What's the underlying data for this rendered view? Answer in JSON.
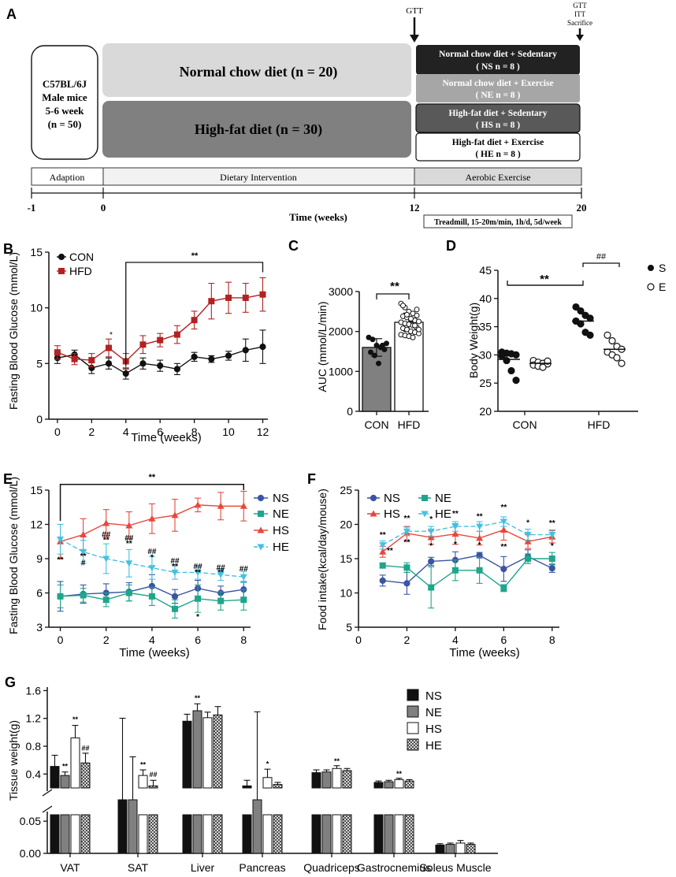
{
  "panel_labels": {
    "a": "A",
    "b": "B",
    "c": "C",
    "d": "D",
    "e": "E",
    "f": "F",
    "g": "G"
  },
  "panel_a": {
    "mice_box": [
      "C57BL/6J",
      "Male mice",
      "5-6 week",
      "(n = 50)"
    ],
    "normal_chow": "Normal chow diet (n = 20)",
    "high_fat": "High-fat diet (n = 30)",
    "groups": [
      {
        "title": "Normal chow diet + Sedentary",
        "n": "( NS n = 8 )"
      },
      {
        "title": "Normal chow diet + Exercise",
        "n": "( NE n = 8 )"
      },
      {
        "title": "High-fat diet + Sedentary",
        "n": "( HS n = 8 )"
      },
      {
        "title": "High-fat diet + Exercise",
        "n": "( HE n = 8 )"
      }
    ],
    "gtt_mid": "GTT",
    "gtt_end": [
      "GTT",
      "ITT",
      "Sacrifice"
    ],
    "phases": [
      "Adaption",
      "Dietary Intervention",
      "Aerobic Exercise"
    ],
    "ticks": [
      "-1",
      "0",
      "12",
      "20"
    ],
    "time_label": "Time (weeks)",
    "treadmill": "Treadmill, 15-20m/min, 1h/d, 5d/week",
    "colors": {
      "ns": "#222222",
      "ne": "#a6a6a6",
      "hs": "#595959",
      "he": "#ffffff",
      "nc": "#d9d9d9",
      "hf": "#7f7f7f"
    }
  },
  "chart_data": [
    {
      "id": "B",
      "type": "line",
      "xlabel": "Time (weeks)",
      "ylabel": "Fasting Blood Glucose (mmol/L)",
      "xlim": [
        -0.5,
        12.3
      ],
      "ylim": [
        0,
        15
      ],
      "xticks": [
        0,
        2,
        4,
        6,
        8,
        10,
        12
      ],
      "yticks": [
        0,
        5,
        10,
        15
      ],
      "x": [
        0,
        1,
        2,
        3,
        4,
        5,
        6,
        7,
        8,
        9,
        10,
        11,
        12
      ],
      "series": [
        {
          "name": "CON",
          "color": "#111111",
          "marker": "circle",
          "values": [
            5.5,
            5.8,
            4.6,
            5.0,
            4.1,
            5.0,
            4.8,
            4.5,
            5.6,
            5.4,
            5.7,
            6.2,
            6.5
          ],
          "err": [
            0.5,
            0.4,
            0.5,
            0.5,
            0.5,
            0.5,
            0.5,
            0.5,
            0.4,
            0.3,
            0.4,
            1.0,
            1.5
          ]
        },
        {
          "name": "HFD",
          "color": "#b22222",
          "marker": "square",
          "values": [
            6.0,
            5.4,
            5.3,
            6.4,
            5.2,
            6.7,
            7.1,
            7.6,
            8.9,
            10.6,
            10.9,
            10.9,
            11.2
          ],
          "err": [
            0.6,
            0.5,
            0.6,
            0.8,
            0.7,
            0.8,
            0.6,
            0.8,
            0.8,
            1.6,
            1.4,
            1.3,
            1.5
          ]
        }
      ],
      "annotations": [
        {
          "text": "**"
        },
        {
          "text": "*"
        }
      ]
    },
    {
      "id": "C",
      "type": "bar",
      "ylabel": "AUC (mmol/L/min)",
      "ylim": [
        0,
        3000
      ],
      "yticks": [
        0,
        1000,
        2000,
        3000
      ],
      "categories": [
        "CON",
        "HFD"
      ],
      "values": [
        1600,
        2230
      ],
      "err": [
        220,
        230
      ],
      "points": [
        [
          1850,
          1800,
          1650,
          1600,
          1550,
          1480,
          1400,
          1200,
          1650,
          1700
        ],
        [
          2700,
          2600,
          2500,
          2450,
          2400,
          2380,
          2350,
          2300,
          2280,
          2250,
          2230,
          2200,
          2180,
          2150,
          2100,
          2080,
          2050,
          2000,
          1980,
          1950,
          1920,
          1900,
          1880,
          1850,
          2550,
          2650,
          2420,
          2320,
          2150,
          2050
        ]
      ],
      "annotation": "**"
    },
    {
      "id": "D",
      "type": "scatter",
      "ylabel": "Body Weight(g)",
      "ylim": [
        20,
        45
      ],
      "yticks": [
        20,
        25,
        30,
        35,
        40,
        45
      ],
      "categories": [
        "CON",
        "HFD"
      ],
      "legend": [
        {
          "name": "S",
          "fill": "filled"
        },
        {
          "name": "E",
          "fill": "open"
        }
      ],
      "groups": [
        {
          "cat": "CON",
          "series": "S",
          "mean": 29.2,
          "values": [
            30.5,
            30.3,
            30.2,
            30.0,
            29.8,
            29.0,
            27.2,
            25.5
          ]
        },
        {
          "cat": "CON",
          "series": "E",
          "mean": 28.5,
          "values": [
            29.0,
            28.7,
            28.5,
            28.4,
            28.2,
            28.0,
            27.8,
            28.9
          ]
        },
        {
          "cat": "HFD",
          "series": "S",
          "mean": 36.0,
          "values": [
            38.5,
            37.8,
            37.0,
            36.5,
            36.0,
            35.5,
            34.0,
            33.5
          ]
        },
        {
          "cat": "HFD",
          "series": "E",
          "mean": 31.0,
          "values": [
            33.5,
            32.5,
            31.5,
            31.0,
            30.5,
            30.0,
            29.5,
            28.5
          ]
        }
      ],
      "annotations": [
        {
          "text": "**"
        },
        {
          "text": "##"
        }
      ]
    },
    {
      "id": "E",
      "type": "line",
      "xlabel": "Time (weeks)",
      "ylabel": "Fasting Blood Glucose (mmol/L)",
      "xlim": [
        -0.5,
        8.3
      ],
      "ylim": [
        3,
        15
      ],
      "xticks": [
        0,
        2,
        4,
        6,
        8
      ],
      "yticks": [
        3,
        6,
        9,
        12,
        15
      ],
      "x": [
        0,
        1,
        2,
        3,
        4,
        5,
        6,
        7,
        8
      ],
      "series": [
        {
          "name": "NS",
          "color": "#3a55a4",
          "marker": "circle",
          "values": [
            5.7,
            5.9,
            6.0,
            6.1,
            6.6,
            5.7,
            6.4,
            6.0,
            6.3
          ],
          "err": [
            1.3,
            0.8,
            0.8,
            0.8,
            1.0,
            0.6,
            0.7,
            0.6,
            0.7
          ]
        },
        {
          "name": "NE",
          "color": "#1fa58a",
          "marker": "square",
          "values": [
            5.7,
            5.8,
            5.4,
            6.0,
            5.7,
            4.6,
            5.5,
            5.3,
            5.4
          ],
          "err": [
            1.0,
            0.6,
            0.6,
            0.7,
            0.8,
            0.8,
            1.2,
            0.8,
            0.9
          ]
        },
        {
          "name": "HS",
          "color": "#e8473b",
          "marker": "triangle",
          "values": [
            10.5,
            11.1,
            12.1,
            11.9,
            12.5,
            12.8,
            13.7,
            13.6,
            13.6
          ],
          "err": [
            1.5,
            1.4,
            1.2,
            1.2,
            1.3,
            1.4,
            0.6,
            1.2,
            1.3
          ]
        },
        {
          "name": "HE",
          "color": "#45c1e0",
          "marker": "tri-down",
          "dashed": true,
          "values": [
            10.7,
            9.6,
            9.0,
            8.6,
            8.2,
            7.8,
            7.8,
            7.6,
            7.4
          ],
          "err": [
            1.3,
            1.0,
            1.3,
            1.2,
            1.0,
            0.6,
            0.6,
            0.5,
            0.5
          ]
        }
      ],
      "annotations": [
        "**",
        "**",
        "##",
        "**",
        "##",
        "**",
        "*",
        "##",
        "**",
        "##",
        "**",
        "*",
        "##",
        "**",
        "##",
        "**",
        "##",
        "**",
        "#",
        "**",
        "**"
      ]
    },
    {
      "id": "F",
      "type": "line",
      "xlabel": "Time (weeks)",
      "ylabel": "Food intake(kcal/day/mouse)",
      "xlim": [
        0,
        8.3
      ],
      "ylim": [
        5,
        25
      ],
      "xticks": [
        0,
        2,
        4,
        6,
        8
      ],
      "yticks": [
        5,
        10,
        15,
        20,
        25
      ],
      "x": [
        1,
        2,
        3,
        4,
        5,
        6,
        7,
        8
      ],
      "series": [
        {
          "name": "NS",
          "color": "#3a55a4",
          "marker": "circle",
          "values": [
            11.8,
            11.4,
            14.6,
            14.8,
            15.5,
            13.5,
            15.3,
            13.6
          ],
          "err": [
            0.8,
            1.6,
            0.6,
            1.2,
            0.4,
            1.8,
            1.0,
            0.6
          ]
        },
        {
          "name": "NE",
          "color": "#1fa58a",
          "marker": "square",
          "values": [
            14.0,
            13.7,
            10.8,
            13.3,
            13.3,
            10.7,
            15.0,
            15.0
          ],
          "err": [
            0.3,
            0.7,
            3.0,
            1.5,
            1.9,
            0.5,
            0.7,
            0.9
          ]
        },
        {
          "name": "HS",
          "color": "#e8473b",
          "marker": "triangle",
          "values": [
            16.0,
            18.7,
            18.1,
            18.6,
            18.0,
            19.2,
            17.5,
            18.2
          ],
          "err": [
            0.8,
            1.0,
            1.0,
            1.5,
            1.0,
            1.5,
            1.0,
            0.9
          ]
        },
        {
          "name": "HE",
          "color": "#45c1e0",
          "marker": "tri-down",
          "dashed": true,
          "values": [
            17.0,
            19.0,
            19.0,
            19.7,
            19.7,
            20.4,
            18.5,
            18.5
          ],
          "err": [
            0.6,
            0.6,
            0.7,
            0.7,
            0.7,
            0.7,
            0.8,
            0.7
          ]
        }
      ],
      "annotations": [
        "**",
        "**",
        "**",
        "**",
        "*",
        "*",
        "**",
        "*",
        "**",
        "**",
        "**",
        "*",
        "**",
        "*"
      ]
    },
    {
      "id": "G",
      "type": "bar",
      "ylabel": "Tissue weight(g)",
      "yticks_upper": [
        0.4,
        0.8,
        1.2,
        1.6
      ],
      "yticks_lower": [
        0.0,
        0.05
      ],
      "categories": [
        "VAT",
        "SAT",
        "Liver",
        "Pancreas",
        "Quadriceps",
        "Gastrocnemius",
        "Soleus Muscle"
      ],
      "series": [
        {
          "name": "NS",
          "pattern": "black",
          "values": [
            0.51,
            0.18,
            1.16,
            0.23,
            0.42,
            0.28,
            0.013
          ],
          "err": [
            0.16,
            0.03,
            0.1,
            0.08,
            0.04,
            0.02,
            0.002
          ]
        },
        {
          "name": "NE",
          "pattern": "gray",
          "values": [
            0.38,
            0.13,
            1.31,
            0.19,
            0.43,
            0.29,
            0.014
          ],
          "err": [
            0.05,
            0.02,
            0.1,
            0.03,
            0.03,
            0.02,
            0.002
          ]
        },
        {
          "name": "HS",
          "pattern": "white",
          "values": [
            0.92,
            0.38,
            1.21,
            0.35,
            0.48,
            0.32,
            0.016
          ],
          "err": [
            0.18,
            0.08,
            0.08,
            0.12,
            0.04,
            0.02,
            0.004
          ]
        },
        {
          "name": "HE",
          "pattern": "hatched",
          "values": [
            0.56,
            0.23,
            1.25,
            0.25,
            0.45,
            0.3,
            0.014
          ],
          "err": [
            0.14,
            0.08,
            0.12,
            0.03,
            0.03,
            0.02,
            0.002
          ]
        }
      ],
      "annotations": [
        "**",
        "**",
        "##",
        "**",
        "##",
        "**",
        "*",
        "**",
        "**"
      ]
    }
  ]
}
